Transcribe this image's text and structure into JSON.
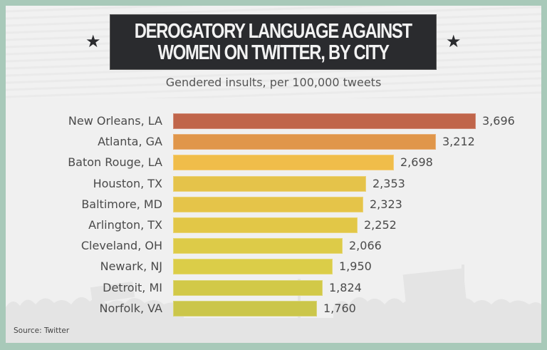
{
  "header": {
    "title_line1": "DEROGATORY LANGUAGE AGAINST",
    "title_line2": "WOMEN ON TWITTER, BY CITY",
    "subtitle": "Gendered insults, per 100,000 tweets",
    "star_left": "★",
    "star_right": "★"
  },
  "footer": {
    "source": "Source: Twitter"
  },
  "colors": {
    "frame": "#a8c9b9",
    "title_bg": "#2a2b2e"
  },
  "rows": [
    {
      "label": "New Orleans, LA",
      "value_text": "3,696",
      "value": 3696,
      "color": "#c0654a"
    },
    {
      "label": "Atlanta, GA",
      "value_text": "3,212",
      "value": 3212,
      "color": "#e0964a"
    },
    {
      "label": "Baton Rouge, LA",
      "value_text": "2,698",
      "value": 2698,
      "color": "#f0bd4a"
    },
    {
      "label": "Houston, TX",
      "value_text": "2,353",
      "value": 2353,
      "color": "#e5c34a"
    },
    {
      "label": "Baltimore, MD",
      "value_text": "2,323",
      "value": 2323,
      "color": "#e5c449"
    },
    {
      "label": "Arlington, TX",
      "value_text": "2,252",
      "value": 2252,
      "color": "#e2c747"
    },
    {
      "label": "Cleveland, OH",
      "value_text": "2,066",
      "value": 2066,
      "color": "#ddcb48"
    },
    {
      "label": "Newark, NJ",
      "value_text": "1,950",
      "value": 1950,
      "color": "#dbcd48"
    },
    {
      "label": "Detroit, MI",
      "value_text": "1,824",
      "value": 1824,
      "color": "#d2c948"
    },
    {
      "label": "Norfolk, VA",
      "value_text": "1,760",
      "value": 1760,
      "color": "#cbc64a"
    }
  ],
  "chart_data": {
    "type": "bar",
    "orientation": "horizontal",
    "title": "DEROGATORY LANGUAGE AGAINST WOMEN ON TWITTER, BY CITY",
    "subtitle": "Gendered insults, per 100,000 tweets",
    "categories": [
      "New Orleans, LA",
      "Atlanta, GA",
      "Baton Rouge, LA",
      "Houston, TX",
      "Baltimore, MD",
      "Arlington, TX",
      "Cleveland, OH",
      "Newark, NJ",
      "Detroit, MI",
      "Norfolk, VA"
    ],
    "values": [
      3696,
      3212,
      2698,
      2353,
      2323,
      2252,
      2066,
      1950,
      1824,
      1760
    ],
    "xlabel": "",
    "ylabel": "Gendered insults, per 100,000 tweets",
    "data_labels": true,
    "grid": false,
    "legend": null,
    "source": "Source: Twitter"
  }
}
